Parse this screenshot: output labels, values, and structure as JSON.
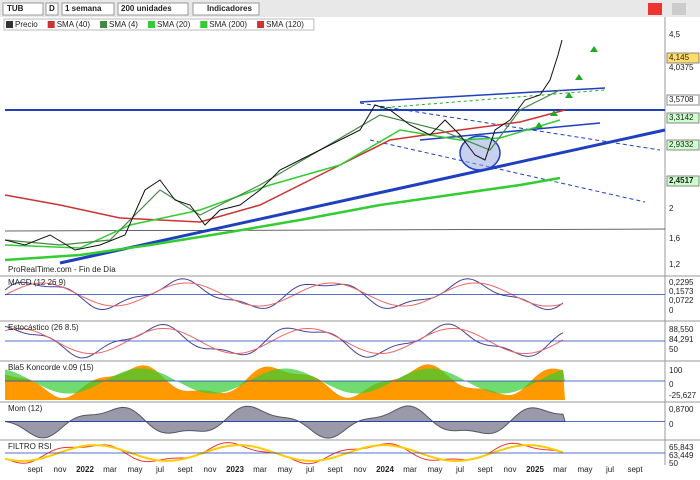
{
  "toolbar": {
    "symbol": "TUB",
    "mode": "D",
    "period": "1 semana",
    "units": "200 unidades",
    "indicators": "Indicadores"
  },
  "legend": [
    "Precio",
    "SMA (40)",
    "SMA (4)",
    "SMA (20)",
    "SMA (200)",
    "SMA (120)"
  ],
  "price_axis": [
    "4,5",
    "4,145",
    "4,0375",
    "3,5708",
    "3,3142",
    "2,9332",
    "2,4517",
    "2",
    "1,6",
    "1,2"
  ],
  "footer": "ProRealTime.com - Fin de Día",
  "panels": [
    {
      "title": "MACD (12 26 9)",
      "labels": [
        "0,2295",
        "0,1573",
        "0,0722",
        "0"
      ]
    },
    {
      "title": "Estocástico (26 8.5)",
      "labels": [
        "88,550",
        "84,291",
        "50"
      ]
    },
    {
      "title": "Bla5 Koncorde v.09 (15)",
      "labels": [
        "100",
        "0",
        "-25,627"
      ]
    },
    {
      "title": "Mom (12)",
      "labels": [
        "0,8700",
        "0"
      ]
    },
    {
      "title": "FILTRO RSI",
      "labels": [
        "65,843",
        "63,449",
        "50"
      ]
    }
  ],
  "x_axis": [
    "sept",
    "nov",
    "2022",
    "mar",
    "may",
    "jul",
    "sept",
    "nov",
    "2023",
    "mar",
    "may",
    "jul",
    "sept",
    "nov",
    "2024",
    "mar",
    "may",
    "jul",
    "sept",
    "nov",
    "2025",
    "mar",
    "may",
    "jul",
    "sept"
  ]
}
